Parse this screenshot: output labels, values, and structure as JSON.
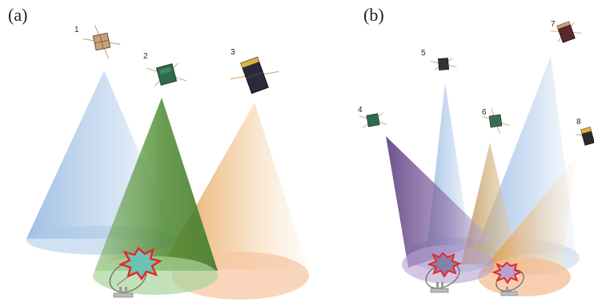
{
  "panels": [
    {
      "label": "(a)",
      "satellites": [
        {
          "number": "1",
          "body_color": "#c9a07a"
        },
        {
          "number": "2",
          "body_color": "#2f6b4a"
        },
        {
          "number": "3",
          "body_color": "#2a2a3a"
        }
      ],
      "beam_colors": [
        "#9dbfe3",
        "#5f9e3e",
        "#e8a44e"
      ],
      "interference_color": "#e62727"
    },
    {
      "label": "(b)",
      "satellites": [
        {
          "number": "4",
          "body_color": "#2f6b4a"
        },
        {
          "number": "5",
          "body_color": "#333333"
        },
        {
          "number": "6",
          "body_color": "#3d6b58"
        },
        {
          "number": "7",
          "body_color": "#5a2a2a"
        },
        {
          "number": "8",
          "body_color": "#2a2a2a"
        }
      ],
      "beam_colors": [
        "#6e4f8f",
        "#9dbfe3",
        "#c79c5a",
        "#9dbfe3",
        "#e8a44e"
      ],
      "interference_color": "#e62727"
    }
  ]
}
